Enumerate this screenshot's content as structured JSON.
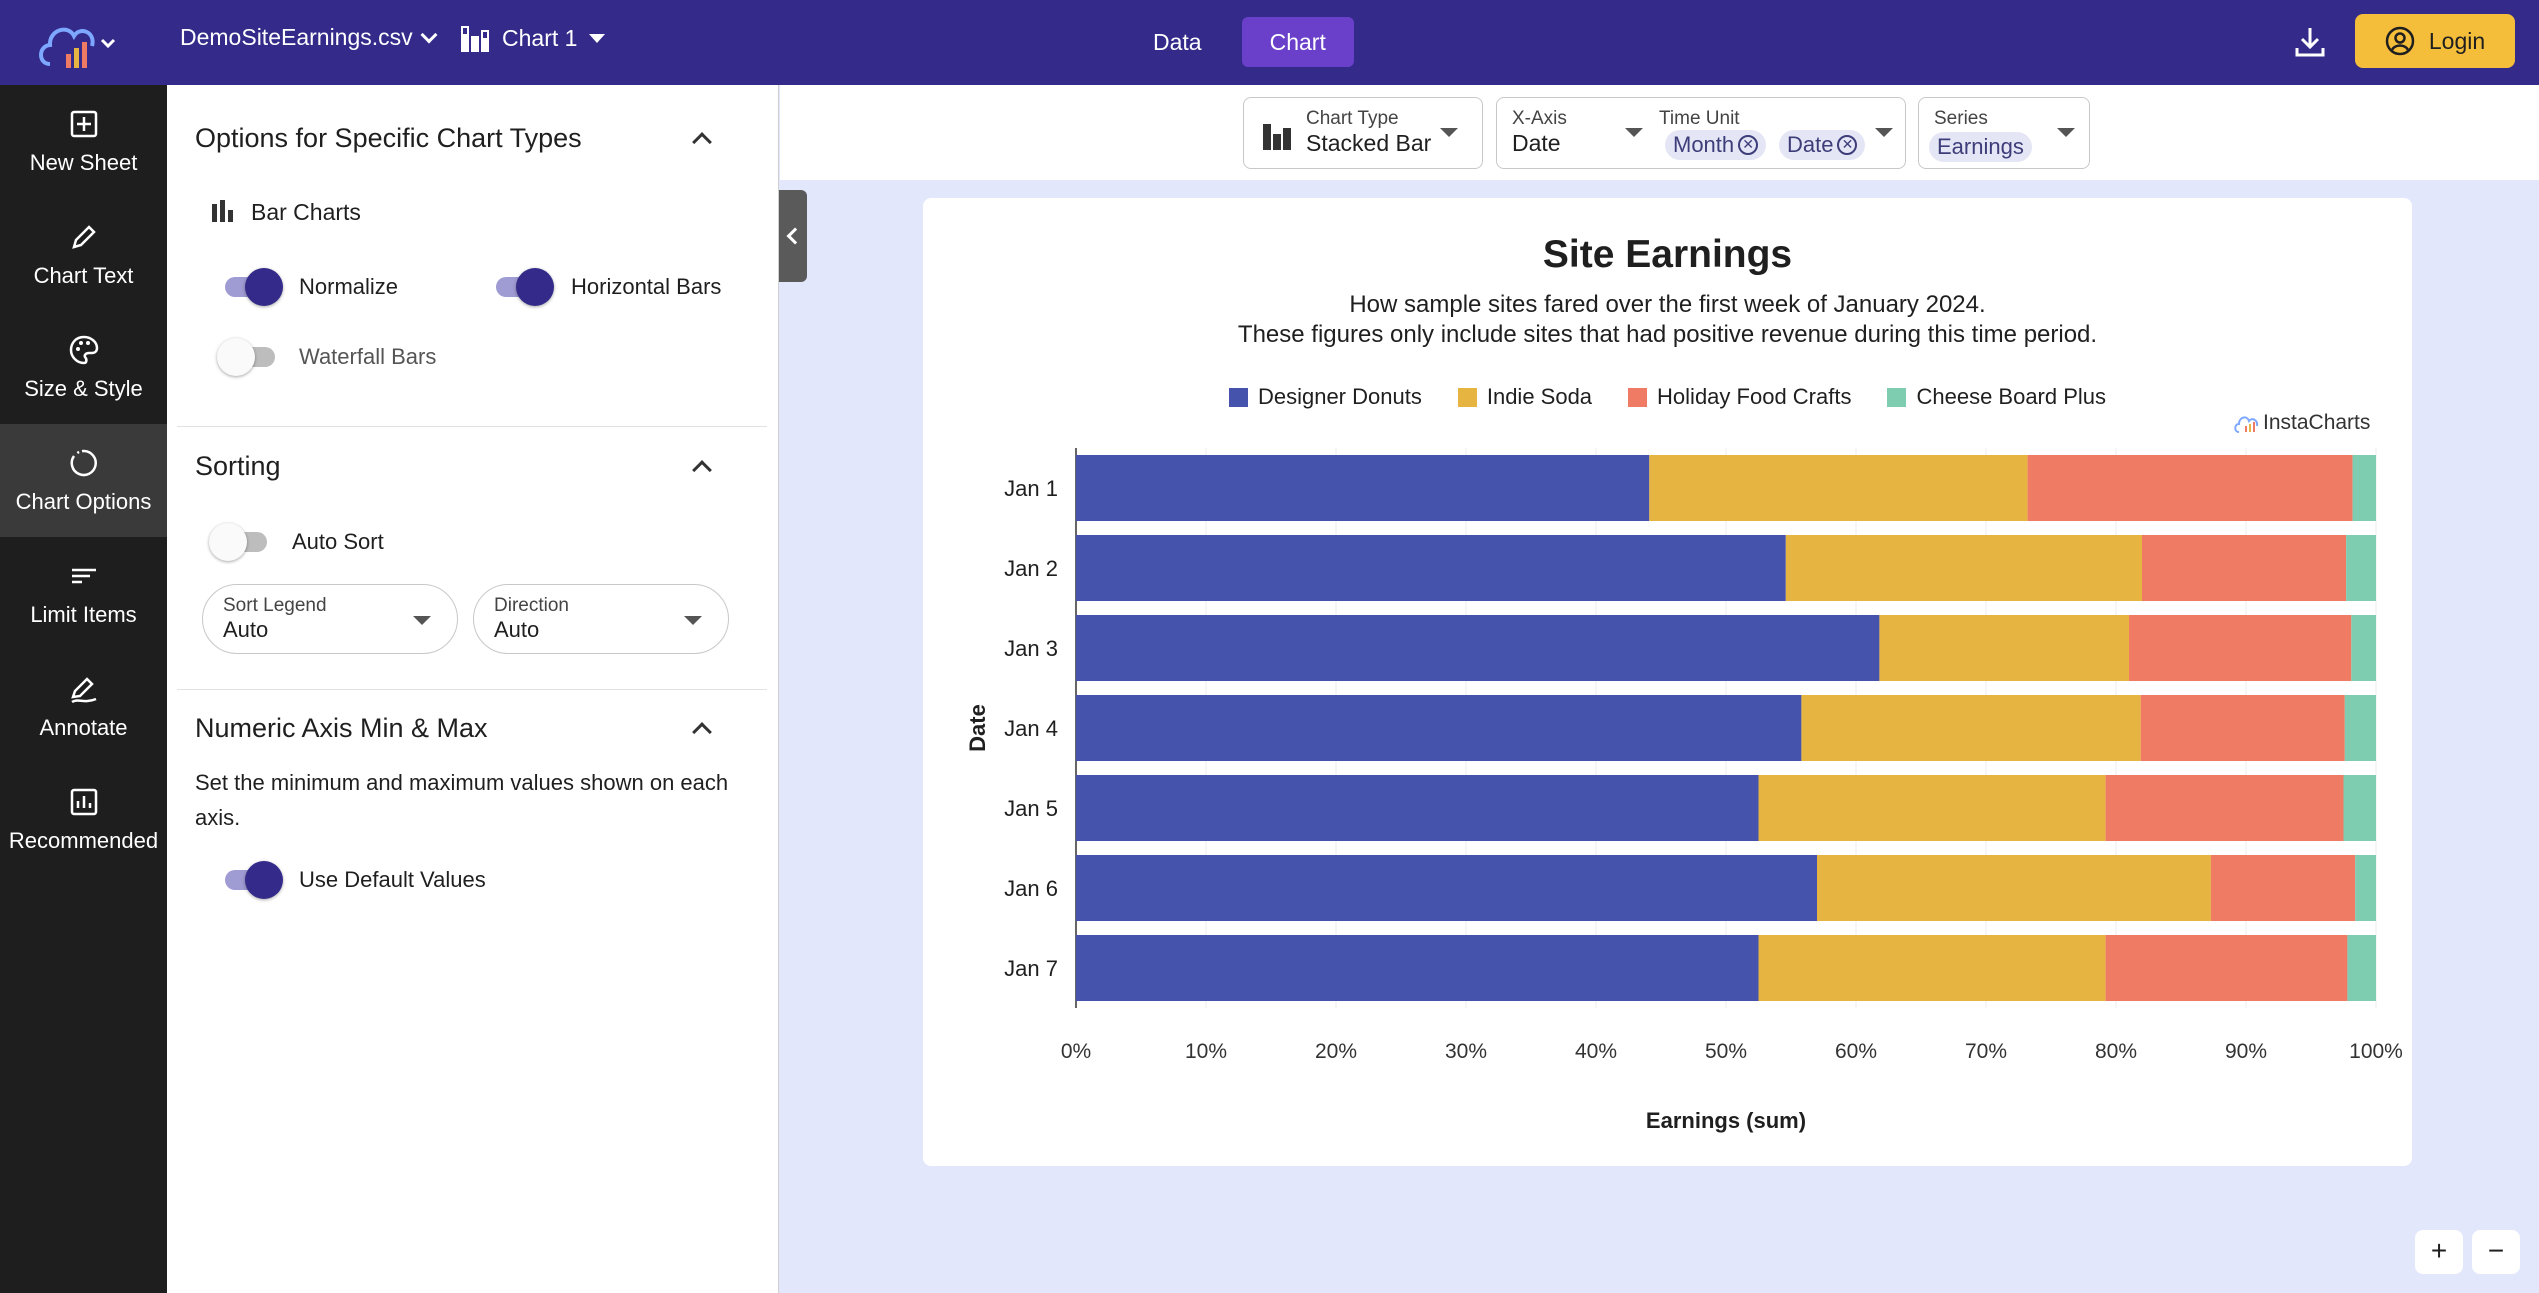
{
  "topbar": {
    "file_name": "DemoSiteEarnings.csv",
    "chart_name": "Chart 1",
    "tabs": [
      {
        "label": "Data"
      },
      {
        "label": "Chart"
      }
    ],
    "login_label": "Login"
  },
  "rail": {
    "items": [
      {
        "label": "New Sheet",
        "icon": "plus-square-icon"
      },
      {
        "label": "Chart Text",
        "icon": "pencil-icon"
      },
      {
        "label": "Size & Style",
        "icon": "palette-icon"
      },
      {
        "label": "Chart Options",
        "icon": "circle-options-icon"
      },
      {
        "label": "Limit Items",
        "icon": "lines-icon"
      },
      {
        "label": "Annotate",
        "icon": "annotate-icon"
      },
      {
        "label": "Recommended",
        "icon": "chart-recommend-icon"
      }
    ]
  },
  "panel": {
    "specific": {
      "title": "Options for Specific Chart Types",
      "bar_charts_label": "Bar Charts",
      "normalize_label": "Normalize",
      "normalize_on": true,
      "horizontal_label": "Horizontal Bars",
      "horizontal_on": true,
      "waterfall_label": "Waterfall Bars",
      "waterfall_on": false
    },
    "sorting": {
      "title": "Sorting",
      "auto_sort_label": "Auto Sort",
      "auto_sort_on": false,
      "sort_legend_label": "Sort Legend",
      "sort_legend_value": "Auto",
      "direction_label": "Direction",
      "direction_value": "Auto"
    },
    "axis": {
      "title": "Numeric Axis Min & Max",
      "description": "Set the minimum and maximum values shown on each axis.",
      "default_label": "Use Default Values",
      "default_on": true
    }
  },
  "toolbar": {
    "chart_type_label": "Chart Type",
    "chart_type_value": "Stacked Bar",
    "xaxis_label": "X-Axis",
    "xaxis_value": "Date",
    "time_unit_label": "Time Unit",
    "time_unit_chips": [
      "Month",
      "Date"
    ],
    "series_label": "Series",
    "series_value": "Earnings"
  },
  "brand_label": "InstaCharts",
  "chart_data": {
    "type": "bar",
    "orientation": "horizontal",
    "stacked": true,
    "normalized": true,
    "title": "Site Earnings",
    "subtitle": [
      "How sample sites fared over the first week of January 2024.",
      "These figures only include sites that had positive revenue during this time period."
    ],
    "xlabel": "Earnings (sum)",
    "ylabel": "Date",
    "categories": [
      "Jan 1",
      "Jan 2",
      "Jan 3",
      "Jan 4",
      "Jan 5",
      "Jan 6",
      "Jan 7"
    ],
    "xlim": [
      0,
      100
    ],
    "xticks": [
      "0%",
      "10%",
      "20%",
      "30%",
      "40%",
      "50%",
      "60%",
      "70%",
      "80%",
      "90%",
      "100%"
    ],
    "legend_position": "top",
    "grid": true,
    "series": [
      {
        "name": "Designer Donuts",
        "color": "#4653ad",
        "values": [
          44.1,
          54.6,
          61.8,
          55.8,
          52.5,
          57.0,
          52.5
        ]
      },
      {
        "name": "Indie Soda",
        "color": "#e6b441",
        "values": [
          29.1,
          27.4,
          19.2,
          26.1,
          26.7,
          30.3,
          26.7
        ]
      },
      {
        "name": "Holiday Food Crafts",
        "color": "#ef7b65",
        "values": [
          25.0,
          15.7,
          17.1,
          15.7,
          18.3,
          11.1,
          18.6
        ]
      },
      {
        "name": "Cheese Board Plus",
        "color": "#7fcdb0",
        "values": [
          1.8,
          2.3,
          1.9,
          2.4,
          2.5,
          1.6,
          2.2
        ]
      }
    ]
  }
}
